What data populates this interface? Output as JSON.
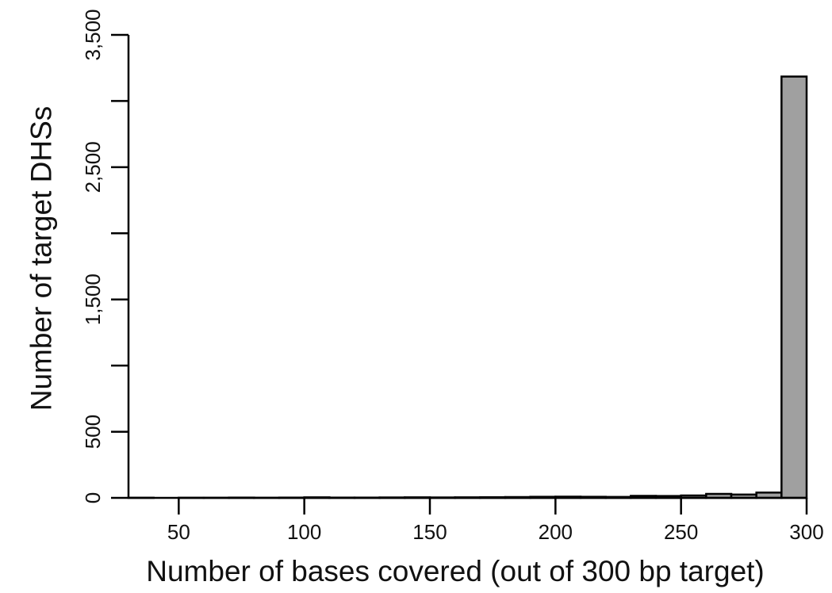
{
  "chart_data": {
    "type": "bar",
    "title": "",
    "xlabel": "Number of bases covered (out of 300 bp target)",
    "ylabel": "Number of target DHSs",
    "xlim": [
      30,
      300
    ],
    "ylim": [
      0,
      3500
    ],
    "x_ticks": [
      50,
      100,
      150,
      200,
      250,
      300
    ],
    "x_tick_labels": [
      "50",
      "100",
      "150",
      "200",
      "250",
      "300"
    ],
    "y_ticks": [
      0,
      500,
      1000,
      1500,
      2000,
      2500,
      3000,
      3500
    ],
    "y_tick_labels": [
      "0",
      "500",
      "",
      "1,500",
      "",
      "2,500",
      "",
      "3,500"
    ],
    "bin_width": 10,
    "bins": [
      {
        "start": 30,
        "end": 40,
        "value": 1
      },
      {
        "start": 40,
        "end": 50,
        "value": 0
      },
      {
        "start": 50,
        "end": 60,
        "value": 1
      },
      {
        "start": 60,
        "end": 70,
        "value": 1
      },
      {
        "start": 70,
        "end": 80,
        "value": 2
      },
      {
        "start": 80,
        "end": 90,
        "value": 1
      },
      {
        "start": 90,
        "end": 100,
        "value": 2
      },
      {
        "start": 100,
        "end": 110,
        "value": 4
      },
      {
        "start": 110,
        "end": 120,
        "value": 2
      },
      {
        "start": 120,
        "end": 130,
        "value": 2
      },
      {
        "start": 130,
        "end": 140,
        "value": 3
      },
      {
        "start": 140,
        "end": 150,
        "value": 4
      },
      {
        "start": 150,
        "end": 160,
        "value": 3
      },
      {
        "start": 160,
        "end": 170,
        "value": 4
      },
      {
        "start": 170,
        "end": 180,
        "value": 5
      },
      {
        "start": 180,
        "end": 190,
        "value": 6
      },
      {
        "start": 190,
        "end": 200,
        "value": 8
      },
      {
        "start": 200,
        "end": 210,
        "value": 9
      },
      {
        "start": 210,
        "end": 220,
        "value": 8
      },
      {
        "start": 220,
        "end": 230,
        "value": 7
      },
      {
        "start": 230,
        "end": 240,
        "value": 15
      },
      {
        "start": 240,
        "end": 250,
        "value": 14
      },
      {
        "start": 250,
        "end": 260,
        "value": 18
      },
      {
        "start": 260,
        "end": 270,
        "value": 30
      },
      {
        "start": 270,
        "end": 280,
        "value": 25
      },
      {
        "start": 280,
        "end": 290,
        "value": 40
      },
      {
        "start": 290,
        "end": 300,
        "value": 3185
      }
    ],
    "bar_color": "#a0a0a0",
    "edge_color": "#000000",
    "grid": false,
    "legend": "none"
  }
}
